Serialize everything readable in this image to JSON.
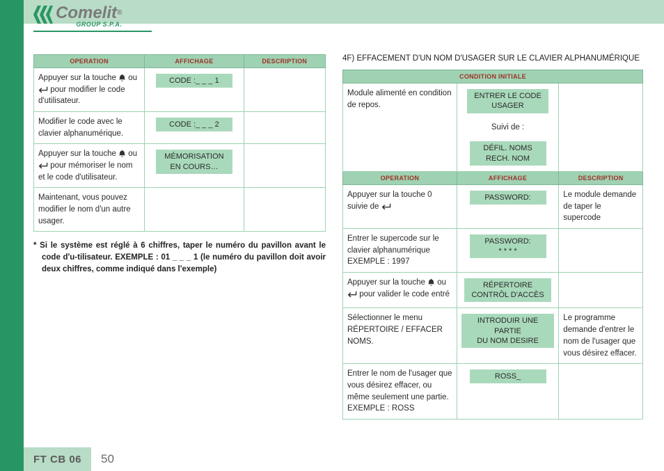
{
  "logo": {
    "word": "Comelit",
    "sub": "GROUP S.P.A."
  },
  "colors": {
    "sidebar": "#289664",
    "topband": "#b8dcc6",
    "th_bg": "#9ed2b2",
    "th_text": "#a03028",
    "disp_bg": "#a9d9bb",
    "border": "#9ed2b2"
  },
  "left_table": {
    "headers": [
      "OPERATION",
      "AFFICHAGE",
      "DESCRIPTION"
    ],
    "rows": [
      {
        "op_pre": "Appuyer sur la touche ",
        "op_mid": " ou ",
        "op_post": " pour modifier le code d'utilisateur.",
        "af": [
          "CODE :_ _ _ 1"
        ]
      },
      {
        "op": "Modifier le code avec le clavier alphanumérique.",
        "af": [
          "CODE :_ _ _ 2"
        ]
      },
      {
        "op_pre": "Appuyer sur la touche ",
        "op_mid": " ou ",
        "op_post": " pour mémoriser le nom et le code d'utilisateur.",
        "af": [
          "MÉMORISATION\nEN COURS…"
        ]
      },
      {
        "op": "Maintenant, vous pouvez modifier le nom d'un autre usager.",
        "af": []
      }
    ]
  },
  "footnote": "*  Si le système est réglé à 6 chiffres, taper le numéro du pavillon avant le code d'u-tilisateur. EXEMPLE : 01 _ _ _ 1 (le numéro du pavillon doit avoir deux chiffres, comme indiqué dans l'exemple)",
  "right_title": "4F) EFFACEMENT D'UN NOM D'USAGER SUR LE CLAVIER ALPHANUMÉRIQUE",
  "right_table": {
    "cond_header": "CONDITION INITIALE",
    "cond": {
      "op": "Module alimenté en condition de repos.",
      "af1": "ENTRER LE CODE\nUSAGER",
      "suiv": "Suivi de :",
      "af2": "DÉFIL. NOMS\nRECH. NOM"
    },
    "headers": [
      "OPERATION",
      "AFFICHAGE",
      "DESCRIPTION"
    ],
    "rows": [
      {
        "op_pre": "Appuyer sur la touche 0 suivie de ",
        "af": [
          "PASSWORD:"
        ],
        "de": "Le module demande de taper le supercode"
      },
      {
        "op": "Entrer le supercode sur le clavier alphanumérique EXEMPLE : 1997",
        "af": [
          "PASSWORD:\n* * * *"
        ]
      },
      {
        "op_pre": "Appuyer sur la touche ",
        "op_mid": " ou ",
        "op_post": " pour valider le code entré",
        "af": [
          "RÉPERTOIRE\nCONTRÔL D'ACCÈS"
        ]
      },
      {
        "op": "Sélectionner le menu RÉPERTOIRE / EFFACER NOMS.",
        "af": [
          "INTRODUIR UNE PARTIE\nDU NOM DESIRE"
        ],
        "de": "Le programme demande d'entrer le nom de l'usager que vous désirez effacer."
      },
      {
        "op": "Entrer le nom de l'usager que vous désirez effacer, ou même seulement une partie. EXEMPLE : ROSS",
        "af": [
          "ROSS_"
        ]
      }
    ]
  },
  "footer": {
    "label": "FT CB 06",
    "page": "50"
  }
}
